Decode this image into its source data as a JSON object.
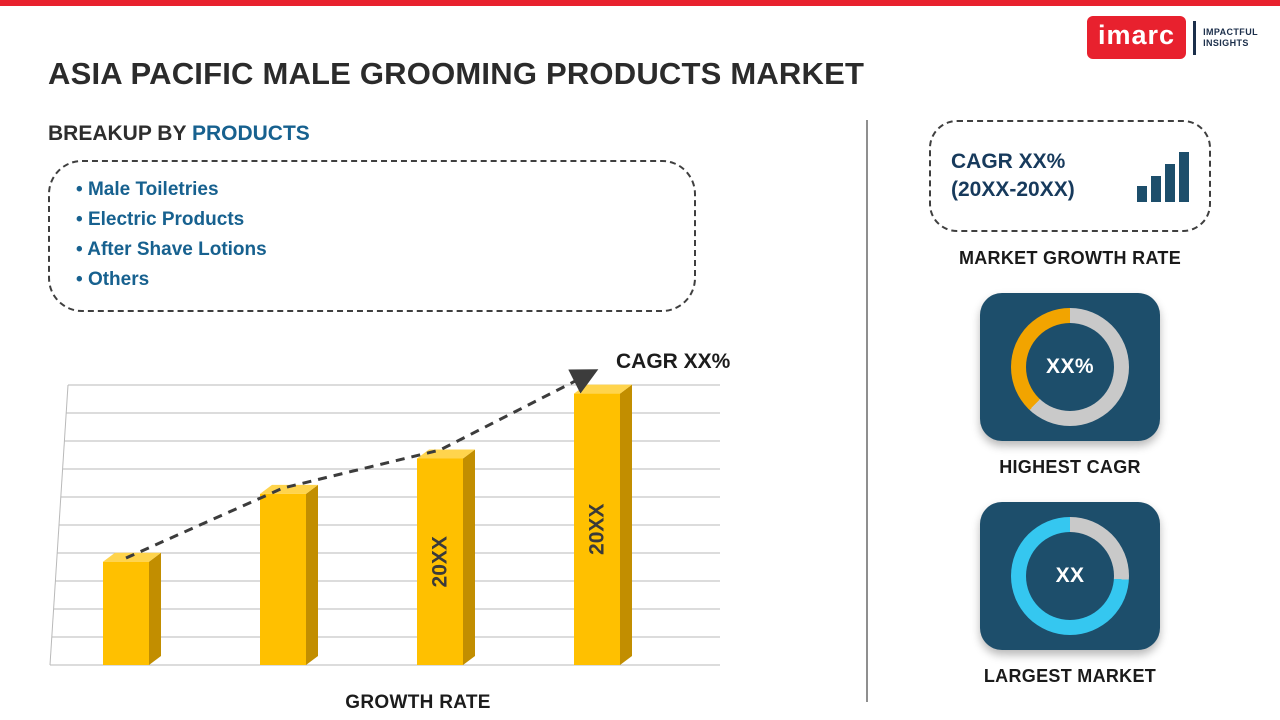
{
  "colors": {
    "accent_red": "#E8212E",
    "brand_navy": "#1B2E4A",
    "blue_text": "#17618F",
    "tile_navy": "#1D4E6B",
    "bar_yellow": "#FFC000",
    "ring_gray": "#C9C9C9",
    "ring_orange": "#F2A400",
    "ring_cyan": "#35C7F0"
  },
  "brand": {
    "logo_text": "imarc",
    "tagline_line1": "IMPACTFUL",
    "tagline_line2": "INSIGHTS"
  },
  "header": {
    "title": "ASIA PACIFIC MALE GROOMING PRODUCTS MARKET"
  },
  "breakup": {
    "heading_prefix": "BREAKUP BY ",
    "heading_highlight": "PRODUCTS",
    "items": [
      "Male Toiletries",
      "Electric Products",
      "After Shave Lotions",
      "Others"
    ]
  },
  "chart_data": {
    "type": "bar",
    "title": "",
    "categories": [
      "",
      "",
      "20XX",
      "20XX"
    ],
    "bar_labels": [
      "",
      "",
      "20XX",
      "20XX"
    ],
    "values": [
      35,
      58,
      70,
      92
    ],
    "ylim": [
      0,
      100
    ],
    "xlabel": "GROWTH RATE",
    "ylabel": "",
    "trend_label": "CAGR XX%",
    "trend_style": "dashed-arrow",
    "grid": true,
    "legend": false,
    "bar_color": "#FFC000",
    "bar_side_color": "#C28E00",
    "bar_top_color": "#FFD44D"
  },
  "sidebar": {
    "growth_box": {
      "line1": "CAGR XX%",
      "line2": "(20XX-20XX)"
    },
    "growth_caption": "MARKET GROWTH RATE",
    "highest_cagr": {
      "value": "XX%",
      "caption": "HIGHEST CAGR",
      "ring_color": "#F2A400",
      "ring_bg": "#C9C9C9",
      "arc_percent": 38
    },
    "largest_market": {
      "value": "XX",
      "caption": "LARGEST MARKET",
      "ring_color": "#35C7F0",
      "ring_bg": "#C9C9C9",
      "arc_percent": 74
    }
  }
}
